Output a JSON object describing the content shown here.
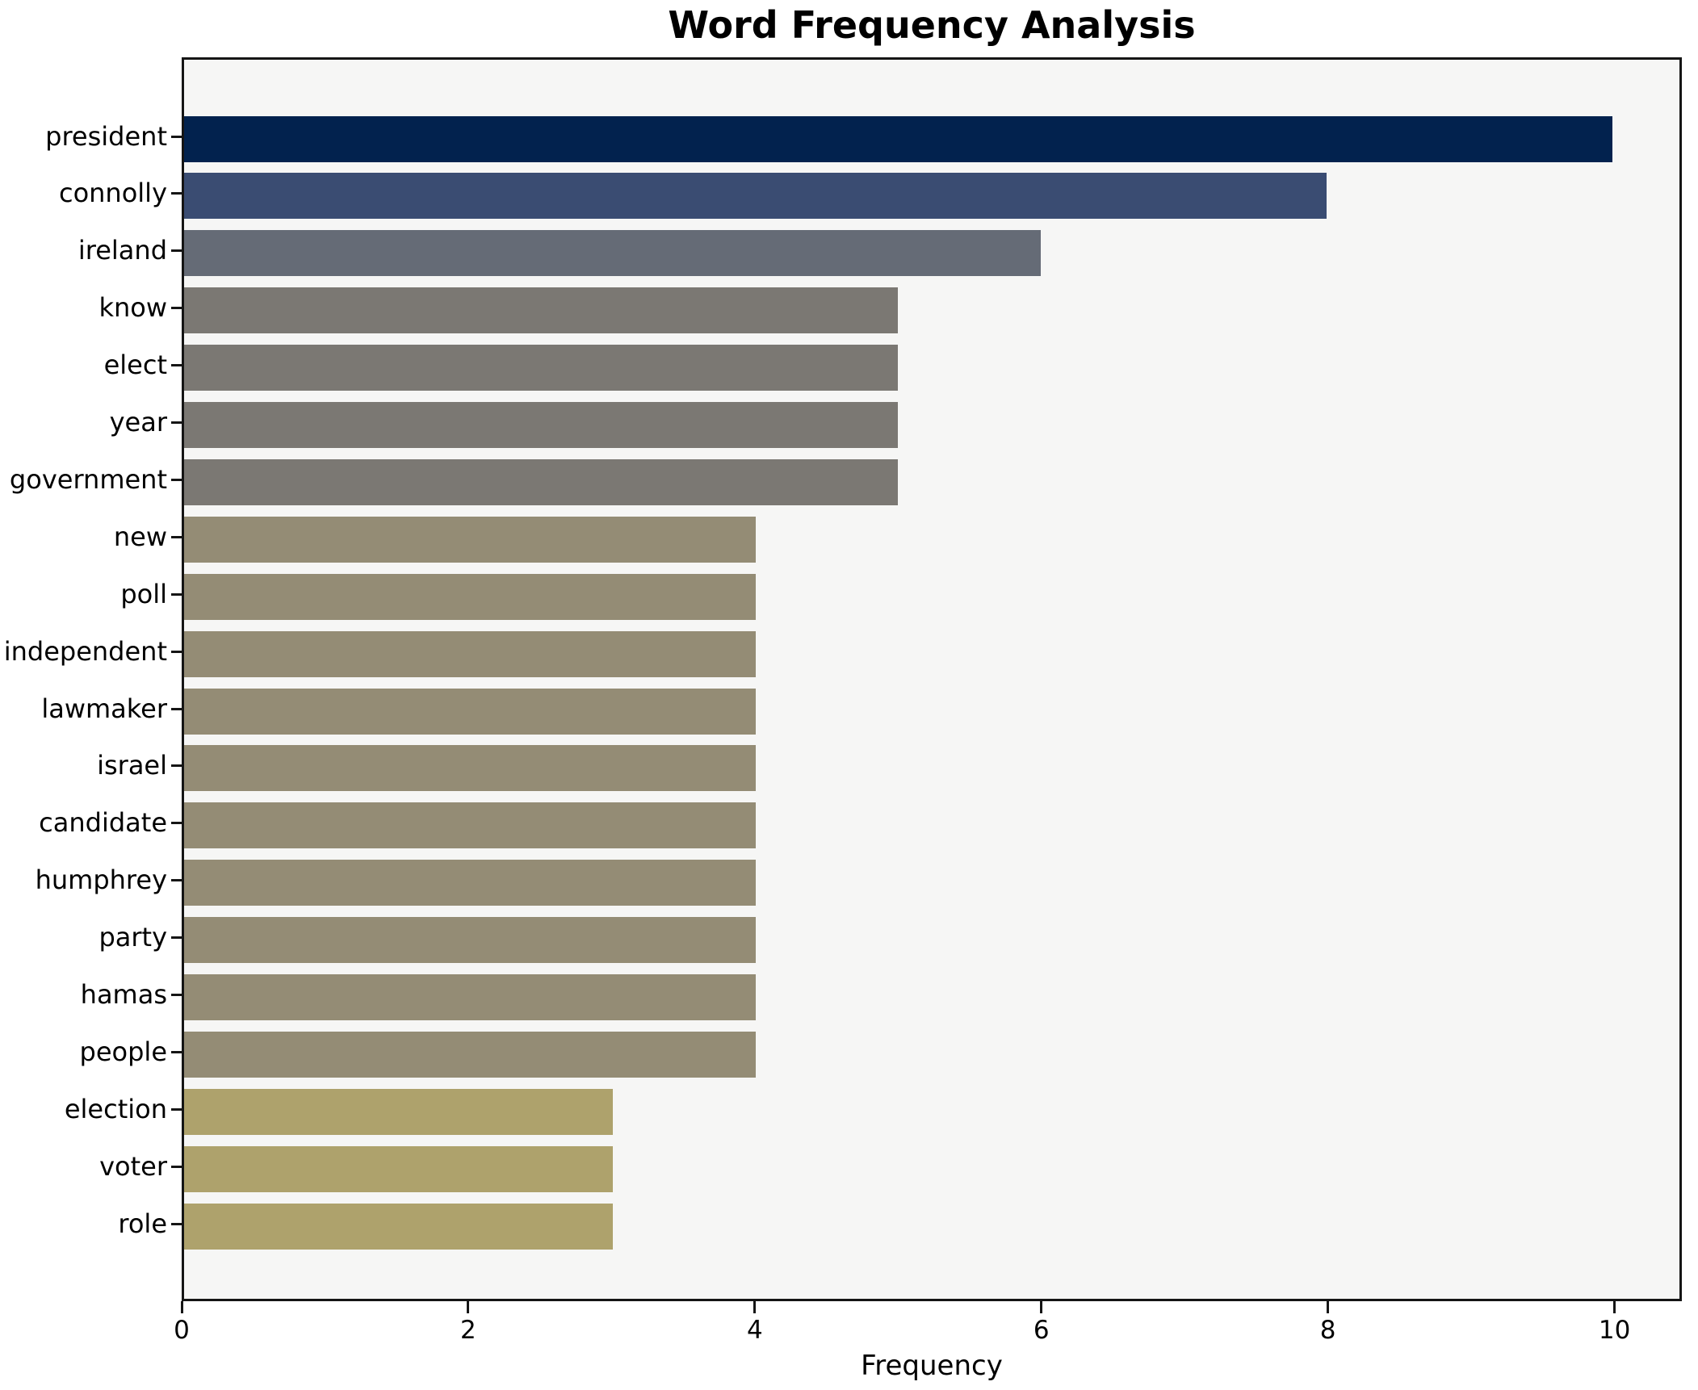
{
  "figure": {
    "title": "Word Frequency Analysis",
    "xlabel": "Frequency"
  },
  "chart_data": {
    "type": "bar",
    "orientation": "horizontal",
    "title": "Word Frequency Analysis",
    "xlabel": "Frequency",
    "ylabel": "",
    "categories": [
      "president",
      "connolly",
      "ireland",
      "know",
      "elect",
      "year",
      "government",
      "new",
      "poll",
      "independent",
      "lawmaker",
      "israel",
      "candidate",
      "humphrey",
      "party",
      "hamas",
      "people",
      "election",
      "voter",
      "role"
    ],
    "values": [
      10,
      8,
      6,
      5,
      5,
      5,
      5,
      4,
      4,
      4,
      4,
      4,
      4,
      4,
      4,
      4,
      4,
      3,
      3,
      3
    ],
    "bar_colors": [
      "#02224e",
      "#3a4c72",
      "#656b76",
      "#7b7873",
      "#7b7873",
      "#7b7873",
      "#7b7873",
      "#948c75",
      "#948c75",
      "#948c75",
      "#948c75",
      "#948c75",
      "#948c75",
      "#948c75",
      "#948c75",
      "#948c75",
      "#948c75",
      "#aea26c",
      "#aea26c",
      "#aea26c"
    ],
    "x_ticks": [
      0,
      2,
      4,
      6,
      8,
      10
    ],
    "xlim": [
      0,
      10.47
    ],
    "grid": false,
    "legend": null,
    "plot_bg": "#f6f6f5",
    "figure_bg": "#ffffff",
    "spine_color": "#151515"
  }
}
